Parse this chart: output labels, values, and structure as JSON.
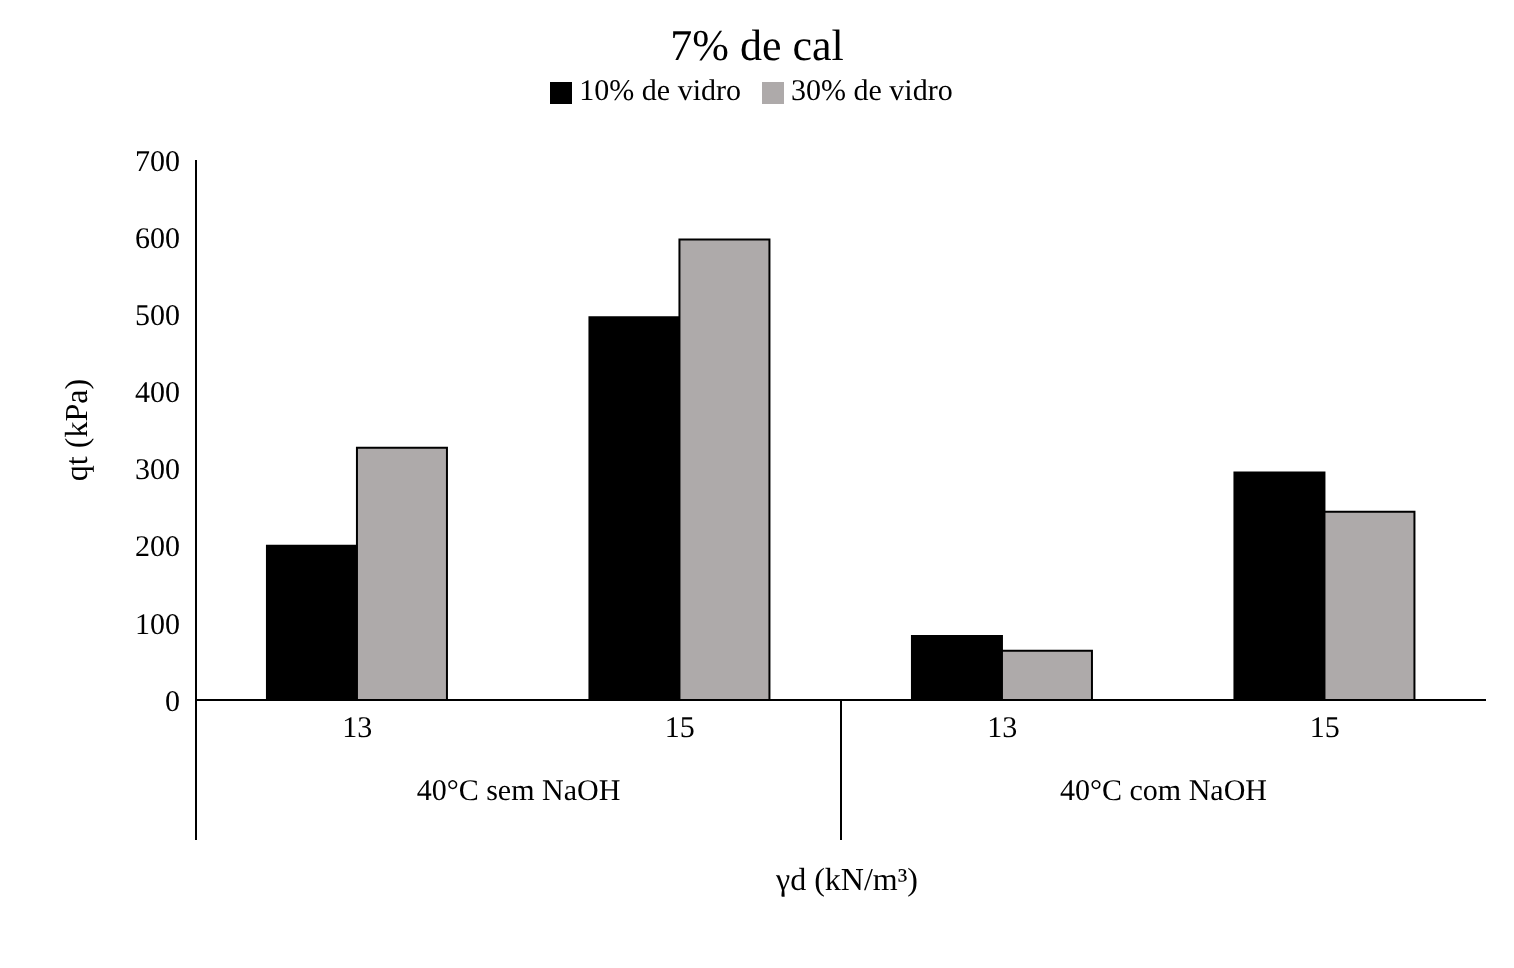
{
  "chart_data": {
    "type": "bar",
    "title": "7% de cal",
    "xlabel": "γd (kN/m³)",
    "ylabel": "qt (kPa)",
    "categories": [
      "13",
      "15",
      "13",
      "15"
    ],
    "annotations": [
      "40°C sem NaOH",
      "40°C com NaOH"
    ],
    "series": [
      {
        "name": "10% de vidro",
        "color": "#000000",
        "values": [
          200,
          496,
          83,
          295
        ]
      },
      {
        "name": "30% de vidro",
        "color": "#aeaaaa",
        "values": [
          327,
          597,
          64,
          244
        ]
      }
    ],
    "ylim": [
      0,
      700
    ],
    "yticks": [
      0,
      100,
      200,
      300,
      400,
      500,
      600,
      700
    ],
    "grid": false,
    "legend": "top"
  }
}
